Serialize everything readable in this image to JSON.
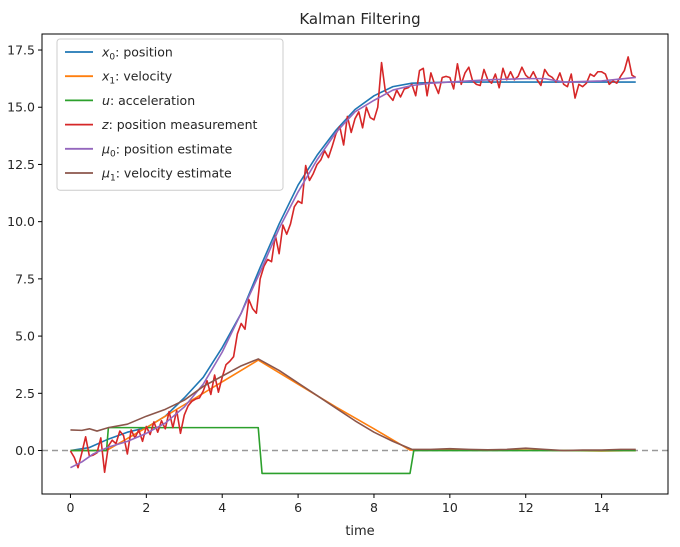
{
  "chart_data": {
    "type": "line",
    "title": "Kalman Filtering",
    "xlabel": "time",
    "ylabel": "",
    "xlim": [
      -0.75,
      15.75
    ],
    "ylim": [
      -1.9,
      18.2
    ],
    "x_ticks": [
      0,
      2,
      4,
      6,
      8,
      10,
      12,
      14
    ],
    "y_ticks": [
      0.0,
      2.5,
      5.0,
      7.5,
      10.0,
      12.5,
      15.0,
      17.5
    ],
    "y_tick_labels": [
      "0.0",
      "2.5",
      "5.0",
      "7.5",
      "10.0",
      "12.5",
      "15.0",
      "17.5"
    ],
    "legend_position": "top-left",
    "reference_line": {
      "y": 0,
      "style": "dashed",
      "color": "#999999"
    },
    "series": [
      {
        "name": "x0: position",
        "legend_symbol": "x",
        "legend_subscript": "0",
        "legend_rest": ": position",
        "color": "#1f77b4",
        "points": [
          [
            0,
            0
          ],
          [
            0.5,
            0.13
          ],
          [
            1,
            0.5
          ],
          [
            1.5,
            0.8
          ],
          [
            2,
            1.0
          ],
          [
            2.5,
            1.5
          ],
          [
            3,
            2.3
          ],
          [
            3.5,
            3.2
          ],
          [
            4,
            4.5
          ],
          [
            4.5,
            6.0
          ],
          [
            5,
            8.0
          ],
          [
            5.5,
            9.9
          ],
          [
            6,
            11.6
          ],
          [
            6.5,
            12.9
          ],
          [
            7,
            14.0
          ],
          [
            7.5,
            14.9
          ],
          [
            8,
            15.5
          ],
          [
            8.5,
            15.9
          ],
          [
            9,
            16.05
          ],
          [
            10,
            16.1
          ],
          [
            11,
            16.1
          ],
          [
            12,
            16.1
          ],
          [
            13,
            16.1
          ],
          [
            14,
            16.1
          ],
          [
            14.9,
            16.1
          ]
        ]
      },
      {
        "name": "x1: velocity",
        "legend_symbol": "x",
        "legend_subscript": "1",
        "legend_rest": ": velocity",
        "color": "#ff7f0e",
        "points": [
          [
            0,
            0
          ],
          [
            0.95,
            0
          ],
          [
            1,
            0.05
          ],
          [
            2,
            1.0
          ],
          [
            3,
            2.0
          ],
          [
            4,
            3.0
          ],
          [
            4.95,
            3.95
          ],
          [
            6,
            2.9
          ],
          [
            7,
            1.9
          ],
          [
            8,
            0.95
          ],
          [
            8.95,
            0.02
          ],
          [
            10,
            0.02
          ],
          [
            12,
            0.02
          ],
          [
            14,
            -0.02
          ],
          [
            14.9,
            0
          ]
        ]
      },
      {
        "name": "u: acceleration",
        "legend_symbol": "u",
        "legend_subscript": "",
        "legend_rest": ": acceleration",
        "color": "#2ca02c",
        "points": [
          [
            0,
            0
          ],
          [
            0.95,
            0
          ],
          [
            1,
            1
          ],
          [
            4.95,
            1
          ],
          [
            5.05,
            -1
          ],
          [
            8.95,
            -1
          ],
          [
            9.05,
            0
          ],
          [
            14.9,
            0
          ]
        ]
      },
      {
        "name": "z: position measurement",
        "legend_symbol": "z",
        "legend_subscript": "",
        "legend_rest": ": position measurement",
        "color": "#d62728",
        "points": [
          [
            0,
            -0.02
          ],
          [
            0.1,
            -0.3
          ],
          [
            0.2,
            -0.75
          ],
          [
            0.3,
            -0.1
          ],
          [
            0.4,
            0.6
          ],
          [
            0.5,
            -0.25
          ],
          [
            0.6,
            -0.2
          ],
          [
            0.7,
            -0.1
          ],
          [
            0.8,
            0.55
          ],
          [
            0.9,
            -0.95
          ],
          [
            1.0,
            0.2
          ],
          [
            1.1,
            0.45
          ],
          [
            1.2,
            0.3
          ],
          [
            1.3,
            0.85
          ],
          [
            1.4,
            0.65
          ],
          [
            1.5,
            -0.15
          ],
          [
            1.6,
            0.9
          ],
          [
            1.7,
            0.55
          ],
          [
            1.8,
            0.9
          ],
          [
            1.9,
            0.4
          ],
          [
            2.0,
            1.05
          ],
          [
            2.1,
            0.7
          ],
          [
            2.2,
            1.25
          ],
          [
            2.3,
            0.8
          ],
          [
            2.4,
            1.3
          ],
          [
            2.5,
            0.95
          ],
          [
            2.6,
            1.7
          ],
          [
            2.7,
            1.0
          ],
          [
            2.8,
            1.75
          ],
          [
            2.9,
            0.75
          ],
          [
            3.0,
            1.55
          ],
          [
            3.1,
            1.95
          ],
          [
            3.2,
            2.15
          ],
          [
            3.3,
            2.25
          ],
          [
            3.4,
            2.3
          ],
          [
            3.5,
            2.6
          ],
          [
            3.6,
            3.05
          ],
          [
            3.7,
            2.45
          ],
          [
            3.8,
            3.3
          ],
          [
            3.9,
            2.55
          ],
          [
            4.0,
            3.2
          ],
          [
            4.1,
            3.75
          ],
          [
            4.2,
            3.9
          ],
          [
            4.3,
            4.1
          ],
          [
            4.4,
            5.1
          ],
          [
            4.5,
            5.55
          ],
          [
            4.6,
            5.3
          ],
          [
            4.7,
            6.6
          ],
          [
            4.8,
            6.2
          ],
          [
            4.9,
            6.0
          ],
          [
            5.0,
            7.5
          ],
          [
            5.1,
            8.05
          ],
          [
            5.2,
            8.35
          ],
          [
            5.3,
            8.25
          ],
          [
            5.4,
            9.4
          ],
          [
            5.5,
            8.6
          ],
          [
            5.6,
            9.85
          ],
          [
            5.7,
            9.45
          ],
          [
            5.8,
            9.9
          ],
          [
            5.9,
            10.65
          ],
          [
            6.0,
            10.9
          ],
          [
            6.1,
            10.8
          ],
          [
            6.2,
            12.45
          ],
          [
            6.3,
            11.8
          ],
          [
            6.4,
            12.1
          ],
          [
            6.5,
            12.5
          ],
          [
            6.6,
            12.7
          ],
          [
            6.7,
            13.1
          ],
          [
            6.8,
            12.8
          ],
          [
            6.9,
            13.3
          ],
          [
            7.0,
            13.85
          ],
          [
            7.1,
            14.15
          ],
          [
            7.2,
            13.35
          ],
          [
            7.3,
            14.6
          ],
          [
            7.4,
            13.9
          ],
          [
            7.5,
            14.5
          ],
          [
            7.6,
            14.8
          ],
          [
            7.7,
            14.1
          ],
          [
            7.8,
            15.0
          ],
          [
            7.9,
            14.55
          ],
          [
            8.0,
            14.45
          ],
          [
            8.1,
            15.0
          ],
          [
            8.2,
            16.95
          ],
          [
            8.3,
            15.7
          ],
          [
            8.4,
            15.5
          ],
          [
            8.5,
            15.3
          ],
          [
            8.6,
            15.75
          ],
          [
            8.7,
            15.45
          ],
          [
            8.8,
            15.8
          ],
          [
            8.9,
            15.85
          ],
          [
            9.0,
            16.0
          ],
          [
            9.1,
            15.5
          ],
          [
            9.2,
            16.6
          ],
          [
            9.3,
            16.7
          ],
          [
            9.4,
            15.5
          ],
          [
            9.5,
            16.5
          ],
          [
            9.6,
            16.0
          ],
          [
            9.7,
            15.6
          ],
          [
            9.8,
            16.3
          ],
          [
            9.9,
            16.35
          ],
          [
            10.0,
            16.3
          ],
          [
            10.1,
            15.8
          ],
          [
            10.2,
            16.9
          ],
          [
            10.3,
            16.0
          ],
          [
            10.4,
            16.5
          ],
          [
            10.5,
            16.75
          ],
          [
            10.6,
            16.15
          ],
          [
            10.7,
            16.0
          ],
          [
            10.8,
            15.95
          ],
          [
            10.9,
            16.65
          ],
          [
            11.0,
            16.2
          ],
          [
            11.1,
            16.05
          ],
          [
            11.2,
            16.45
          ],
          [
            11.3,
            15.85
          ],
          [
            11.4,
            16.7
          ],
          [
            11.5,
            16.2
          ],
          [
            11.6,
            16.55
          ],
          [
            11.7,
            16.2
          ],
          [
            11.8,
            16.35
          ],
          [
            11.9,
            16.75
          ],
          [
            12.0,
            16.4
          ],
          [
            12.1,
            16.25
          ],
          [
            12.2,
            16.55
          ],
          [
            12.3,
            16.2
          ],
          [
            12.4,
            15.95
          ],
          [
            12.5,
            16.65
          ],
          [
            12.6,
            16.4
          ],
          [
            12.7,
            16.3
          ],
          [
            12.8,
            16.1
          ],
          [
            12.9,
            16.5
          ],
          [
            13.0,
            16.0
          ],
          [
            13.1,
            15.9
          ],
          [
            13.2,
            16.45
          ],
          [
            13.3,
            15.4
          ],
          [
            13.4,
            16.0
          ],
          [
            13.5,
            15.9
          ],
          [
            13.6,
            16.05
          ],
          [
            13.7,
            16.45
          ],
          [
            13.8,
            16.35
          ],
          [
            13.9,
            16.55
          ],
          [
            14.0,
            16.55
          ],
          [
            14.1,
            16.45
          ],
          [
            14.2,
            16.0
          ],
          [
            14.3,
            16.15
          ],
          [
            14.4,
            16.05
          ],
          [
            14.5,
            16.35
          ],
          [
            14.6,
            16.6
          ],
          [
            14.7,
            17.2
          ],
          [
            14.8,
            16.4
          ],
          [
            14.9,
            16.3
          ]
        ]
      },
      {
        "name": "μ0: position estimate",
        "legend_symbol": "μ",
        "legend_subscript": "0",
        "legend_rest": ": position estimate",
        "color": "#9467bd",
        "points": [
          [
            0,
            -0.75
          ],
          [
            0.3,
            -0.5
          ],
          [
            0.6,
            -0.15
          ],
          [
            1,
            0.15
          ],
          [
            1.5,
            0.4
          ],
          [
            2,
            0.75
          ],
          [
            2.5,
            1.2
          ],
          [
            3,
            1.9
          ],
          [
            3.5,
            2.9
          ],
          [
            4,
            4.3
          ],
          [
            4.5,
            6.0
          ],
          [
            5,
            7.8
          ],
          [
            5.5,
            9.7
          ],
          [
            6,
            11.3
          ],
          [
            6.5,
            12.7
          ],
          [
            7,
            13.9
          ],
          [
            7.5,
            14.8
          ],
          [
            8,
            15.3
          ],
          [
            8.5,
            15.75
          ],
          [
            9,
            15.95
          ],
          [
            9.5,
            16.05
          ],
          [
            10,
            16.1
          ],
          [
            11,
            16.2
          ],
          [
            12,
            16.25
          ],
          [
            12.5,
            16.25
          ],
          [
            13,
            16.1
          ],
          [
            14,
            16.15
          ],
          [
            14.9,
            16.3
          ]
        ]
      },
      {
        "name": "μ1: velocity estimate",
        "legend_symbol": "μ",
        "legend_subscript": "1",
        "legend_rest": ": velocity estimate",
        "color": "#8c564b",
        "points": [
          [
            0,
            0.9
          ],
          [
            0.3,
            0.88
          ],
          [
            0.5,
            0.95
          ],
          [
            0.7,
            0.85
          ],
          [
            0.9,
            0.95
          ],
          [
            1,
            1.0
          ],
          [
            1.5,
            1.15
          ],
          [
            2,
            1.5
          ],
          [
            2.5,
            1.8
          ],
          [
            3,
            2.2
          ],
          [
            3.5,
            2.8
          ],
          [
            4,
            3.25
          ],
          [
            4.5,
            3.7
          ],
          [
            4.95,
            4.0
          ],
          [
            5.5,
            3.5
          ],
          [
            6,
            2.95
          ],
          [
            6.5,
            2.4
          ],
          [
            7,
            1.85
          ],
          [
            7.5,
            1.3
          ],
          [
            8,
            0.8
          ],
          [
            8.5,
            0.4
          ],
          [
            9,
            0.05
          ],
          [
            9.5,
            0.05
          ],
          [
            10,
            0.08
          ],
          [
            10.5,
            0.05
          ],
          [
            11,
            0.03
          ],
          [
            11.5,
            0.05
          ],
          [
            12,
            0.1
          ],
          [
            12.5,
            0.05
          ],
          [
            13,
            0.0
          ],
          [
            13.5,
            0.02
          ],
          [
            14,
            0.02
          ],
          [
            14.5,
            0.05
          ],
          [
            14.9,
            0.05
          ]
        ]
      }
    ]
  }
}
